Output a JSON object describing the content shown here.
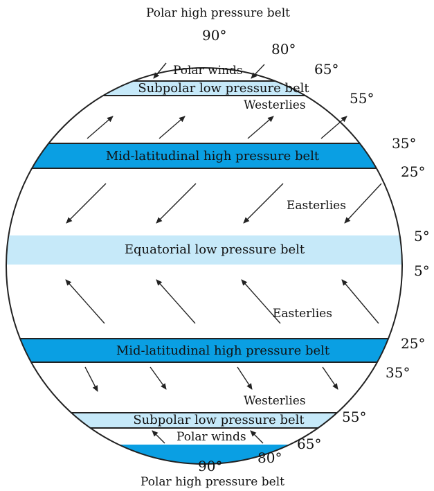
{
  "colors": {
    "high_pressure": "#0a9fe3",
    "low_pressure": "#c6e9f9",
    "outline": "#222222",
    "arrow": "#222222"
  },
  "titles": {
    "top": "Polar high pressure belt",
    "bottom": "Polar high pressure belt"
  },
  "belts": {
    "north_polar_cap": {
      "kind": "high"
    },
    "north_subpolar": {
      "label": "Subpolar low pressure belt",
      "kind": "low"
    },
    "north_mid": {
      "label": "Mid-latitudinal high pressure belt",
      "kind": "high"
    },
    "equatorial": {
      "label": "Equatorial low pressure belt",
      "kind": "low"
    },
    "south_mid": {
      "label": "Mid-latitudinal high pressure belt",
      "kind": "high"
    },
    "south_subpolar": {
      "label": "Subpolar low pressure belt",
      "kind": "low"
    },
    "south_polar_cap": {
      "kind": "high"
    }
  },
  "winds": {
    "north_polar": "Polar winds",
    "north_westerlies": "Westerlies",
    "north_easterlies": "Easterlies",
    "south_easterlies": "Easterlies",
    "south_westerlies": "Westerlies",
    "south_polar": "Polar winds"
  },
  "latitudes": {
    "n90": "90°",
    "n80": "80°",
    "n65": "65°",
    "n55": "55°",
    "n35": "35°",
    "n25": "25°",
    "n5": "5°",
    "s5": "5°",
    "s25": "25°",
    "s35": "35°",
    "s55": "55°",
    "s65": "65°",
    "s80": "80°",
    "s90": "90°"
  }
}
